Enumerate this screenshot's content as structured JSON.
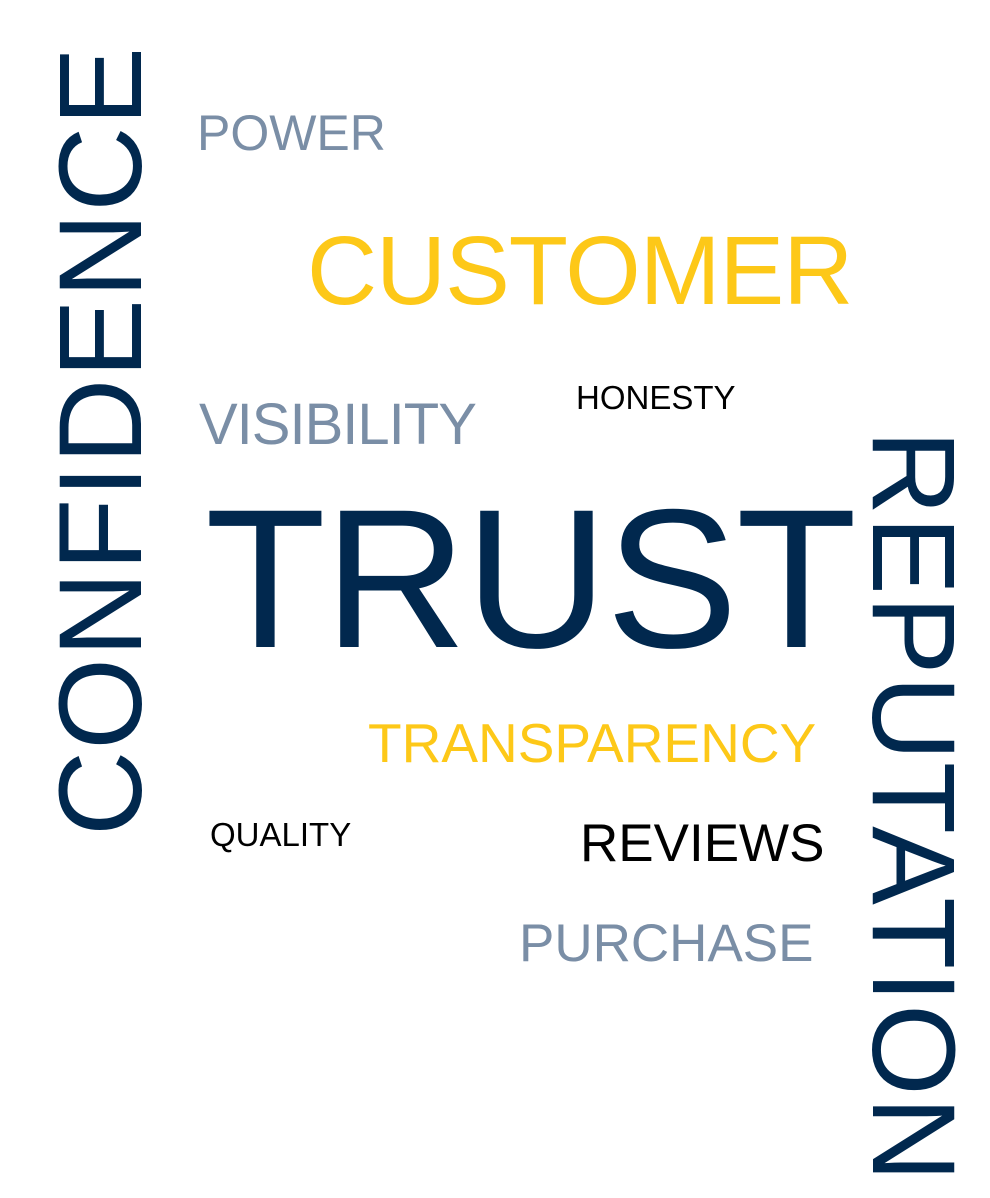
{
  "words": {
    "confidence": "CONFIDENCE",
    "power": "POWER",
    "customer": "CUSTOMER",
    "honesty": "HONESTY",
    "visibility": "VISIBILITY",
    "trust": "TRUST",
    "transparency": "TRANSPARENCY",
    "quality": "QUALITY",
    "reviews": "REVIEWS",
    "purchase": "PURCHASE",
    "reputation": "REPUTATION"
  },
  "colors": {
    "navy": "#01284e",
    "slate": "#7a8ea6",
    "gold": "#fdc818",
    "black": "#000000",
    "background": "#ffffff"
  }
}
